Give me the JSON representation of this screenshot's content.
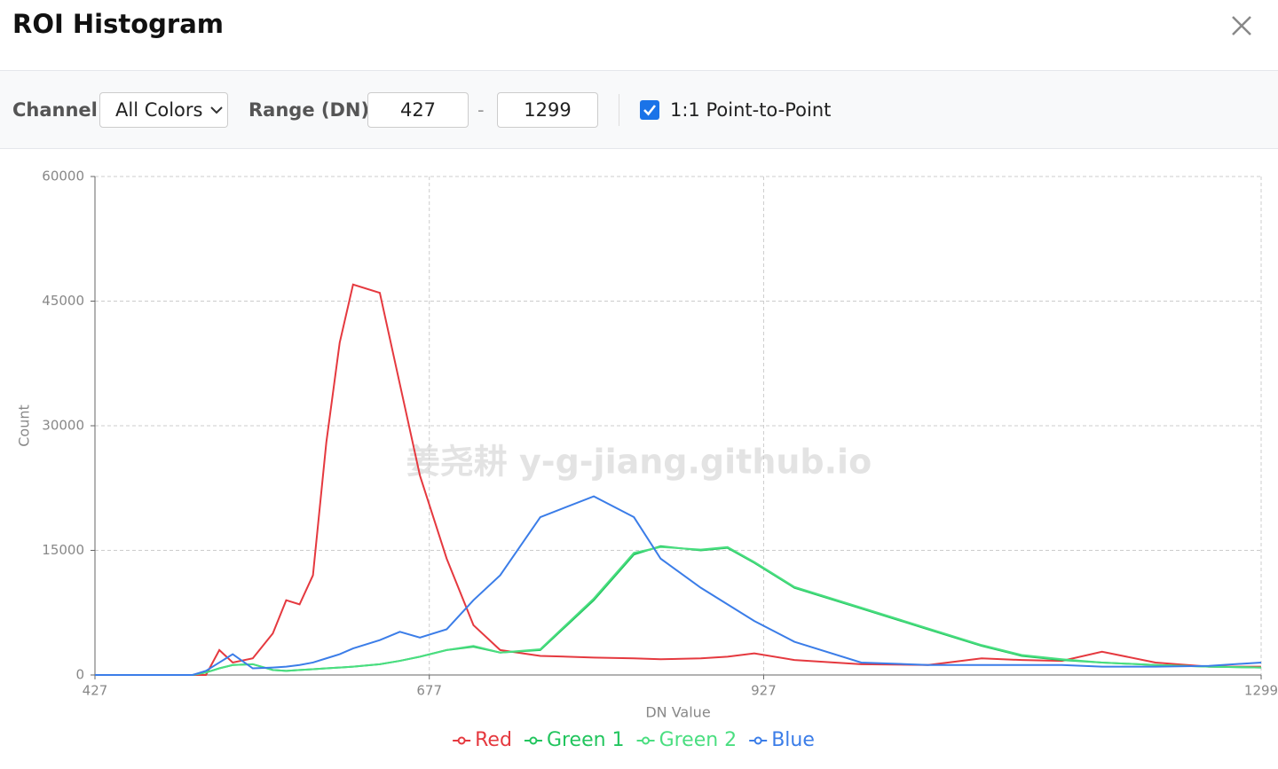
{
  "dialog": {
    "title": "ROI Histogram"
  },
  "controls": {
    "channel_label": "Channel:",
    "channel_value": "All Colors",
    "range_label": "Range (DN):",
    "range_min": 427,
    "range_separator": "-",
    "range_max": 1299,
    "checkbox_label": "1:1 Point-to-Point"
  },
  "chart_data": {
    "type": "line",
    "x_label": "DN Value",
    "y_label": "Count",
    "annotation": "姜尧耕 y-g-jiang.github.io",
    "x": [
      427,
      500,
      510,
      520,
      530,
      545,
      560,
      570,
      580,
      590,
      600,
      610,
      620,
      640,
      655,
      670,
      690,
      710,
      730,
      760,
      800,
      830,
      850,
      880,
      900,
      920,
      950,
      1000,
      1050,
      1090,
      1120,
      1150,
      1180,
      1220,
      1260,
      1299
    ],
    "series": [
      {
        "name": "Red",
        "color": "#e5393f",
        "values": [
          0,
          0,
          0,
          3000,
          1500,
          2000,
          5000,
          9000,
          8500,
          12000,
          28000,
          40000,
          47000,
          46000,
          35000,
          24000,
          14000,
          6000,
          3000,
          2300,
          2100,
          2000,
          1900,
          2000,
          2200,
          2600,
          1800,
          1300,
          1200,
          2000,
          1800,
          1700,
          2800,
          1500,
          1000,
          1000
        ]
      },
      {
        "name": "Green 1",
        "color": "#22c55e",
        "values": [
          0,
          0,
          300,
          800,
          1200,
          1300,
          600,
          500,
          600,
          700,
          800,
          900,
          1000,
          1300,
          1700,
          2200,
          3000,
          3400,
          2700,
          3000,
          9000,
          14500,
          15500,
          15000,
          15300,
          13500,
          10500,
          8000,
          5500,
          3500,
          2300,
          1800,
          1500,
          1200,
          1000,
          900
        ]
      },
      {
        "name": "Green 2",
        "color": "#4ade80",
        "values": [
          0,
          0,
          300,
          800,
          1200,
          1300,
          600,
          500,
          600,
          700,
          800,
          900,
          1000,
          1300,
          1700,
          2200,
          3000,
          3500,
          2700,
          3100,
          9200,
          14700,
          15400,
          15100,
          15400,
          13600,
          10600,
          8100,
          5600,
          3600,
          2400,
          1900,
          1500,
          1200,
          1000,
          900
        ]
      },
      {
        "name": "Blue",
        "color": "#3b7de8",
        "values": [
          0,
          0,
          500,
          1500,
          2500,
          800,
          900,
          1000,
          1200,
          1500,
          2000,
          2500,
          3200,
          4200,
          5200,
          4500,
          5500,
          9000,
          12000,
          19000,
          21500,
          19000,
          14000,
          10500,
          8500,
          6500,
          4000,
          1500,
          1200,
          1200,
          1200,
          1200,
          1000,
          1000,
          1100,
          1500
        ]
      }
    ],
    "xlim": [
      427,
      1299
    ],
    "xticks": [
      427,
      677,
      927,
      1299
    ],
    "ylim": [
      0,
      60000
    ],
    "yticks": [
      0,
      15000,
      30000,
      45000,
      60000
    ],
    "grid": true,
    "legend": "bottom"
  }
}
